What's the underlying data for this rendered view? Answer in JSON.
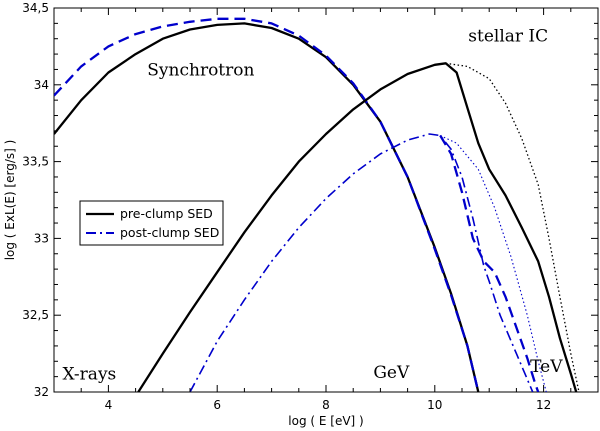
{
  "chart_data": {
    "type": "line",
    "title": "",
    "xlabel": "log ( E [eV] )",
    "ylabel": "log ( ExL(E) [erg/s] )",
    "xlim": [
      3,
      13
    ],
    "ylim": [
      32,
      34.5
    ],
    "grid": false,
    "x_ticks": [
      4,
      6,
      8,
      10,
      12
    ],
    "y_ticks": [
      {
        "value": 32,
        "label": "32"
      },
      {
        "value": 32.5,
        "label": "32,5"
      },
      {
        "value": 33,
        "label": "33"
      },
      {
        "value": 33.5,
        "label": "33,5"
      },
      {
        "value": 34,
        "label": "34"
      },
      {
        "value": 34.5,
        "label": "34,5"
      }
    ],
    "legend": {
      "placement": "center-left",
      "entries": [
        {
          "label": "pre-clump SED",
          "color": "#000000",
          "dash": "solid"
        },
        {
          "label": "post-clump SED",
          "color": "#0000cc",
          "dash": "dashdot"
        }
      ]
    },
    "annotations": [
      {
        "text": "Synchrotron",
        "x": 5.7,
        "y": 34.1
      },
      {
        "text": "stellar IC",
        "x": 11.35,
        "y": 34.32
      },
      {
        "text": "X-rays",
        "x": 3.65,
        "y": 32.12
      },
      {
        "text": "GeV",
        "x": 9.2,
        "y": 32.13
      },
      {
        "text": "TeV",
        "x": 12.05,
        "y": 32.17
      }
    ],
    "series": [
      {
        "name": "pre-clump synchrotron",
        "color": "#000000",
        "style": "solid",
        "width": 2.3,
        "points": [
          [
            3,
            33.68
          ],
          [
            3.5,
            33.9
          ],
          [
            4,
            34.08
          ],
          [
            4.5,
            34.2
          ],
          [
            5,
            34.3
          ],
          [
            5.5,
            34.36
          ],
          [
            6,
            34.39
          ],
          [
            6.5,
            34.4
          ],
          [
            7,
            34.37
          ],
          [
            7.5,
            34.3
          ],
          [
            8,
            34.18
          ],
          [
            8.5,
            34.0
          ],
          [
            9,
            33.76
          ],
          [
            9.5,
            33.4
          ],
          [
            10,
            32.94
          ],
          [
            10.3,
            32.64
          ],
          [
            10.6,
            32.3
          ],
          [
            10.8,
            32.0
          ]
        ]
      },
      {
        "name": "post-clump synchrotron",
        "color": "#0000cc",
        "style": "dashed",
        "width": 2.3,
        "points": [
          [
            3,
            33.93
          ],
          [
            3.5,
            34.12
          ],
          [
            4,
            34.25
          ],
          [
            4.5,
            34.33
          ],
          [
            5,
            34.38
          ],
          [
            5.5,
            34.41
          ],
          [
            6,
            34.43
          ],
          [
            6.5,
            34.43
          ],
          [
            7,
            34.4
          ],
          [
            7.5,
            34.32
          ],
          [
            8,
            34.19
          ],
          [
            8.5,
            34.01
          ],
          [
            9,
            33.76
          ],
          [
            9.5,
            33.4
          ],
          [
            10,
            32.93
          ],
          [
            10.3,
            32.63
          ],
          [
            10.6,
            32.3
          ],
          [
            10.8,
            32.0
          ]
        ]
      },
      {
        "name": "pre-clump stellar IC",
        "color": "#000000",
        "style": "solid",
        "width": 2.3,
        "points": [
          [
            4.55,
            32.0
          ],
          [
            5,
            32.25
          ],
          [
            5.5,
            32.52
          ],
          [
            6,
            32.78
          ],
          [
            6.5,
            33.04
          ],
          [
            7,
            33.28
          ],
          [
            7.5,
            33.5
          ],
          [
            8,
            33.68
          ],
          [
            8.5,
            33.84
          ],
          [
            9,
            33.97
          ],
          [
            9.5,
            34.07
          ],
          [
            10,
            34.13
          ],
          [
            10.2,
            34.14
          ],
          [
            10.4,
            34.08
          ],
          [
            10.6,
            33.85
          ],
          [
            10.8,
            33.62
          ],
          [
            11,
            33.45
          ],
          [
            11.3,
            33.28
          ],
          [
            11.6,
            33.07
          ],
          [
            11.9,
            32.85
          ],
          [
            12.1,
            32.62
          ],
          [
            12.3,
            32.35
          ],
          [
            12.5,
            32.12
          ],
          [
            12.6,
            32.0
          ]
        ]
      },
      {
        "name": "pre-clump stellar IC (unabsorbed)",
        "color": "#000000",
        "style": "dotted",
        "width": 1.3,
        "points": [
          [
            10.2,
            34.14
          ],
          [
            10.6,
            34.12
          ],
          [
            11,
            34.04
          ],
          [
            11.3,
            33.88
          ],
          [
            11.6,
            33.65
          ],
          [
            11.9,
            33.35
          ],
          [
            12.1,
            33.0
          ],
          [
            12.3,
            32.62
          ],
          [
            12.5,
            32.25
          ],
          [
            12.65,
            32.0
          ]
        ]
      },
      {
        "name": "post-clump stellar IC",
        "color": "#0000cc",
        "style": "dashdot",
        "width": 1.6,
        "points": [
          [
            5.5,
            32.0
          ],
          [
            6,
            32.33
          ],
          [
            6.5,
            32.6
          ],
          [
            7,
            32.85
          ],
          [
            7.5,
            33.07
          ],
          [
            8,
            33.26
          ],
          [
            8.5,
            33.42
          ],
          [
            9,
            33.55
          ],
          [
            9.5,
            33.64
          ],
          [
            9.9,
            33.68
          ],
          [
            10.1,
            33.67
          ],
          [
            10.3,
            33.58
          ],
          [
            10.5,
            33.4
          ],
          [
            10.7,
            33.13
          ],
          [
            10.9,
            32.82
          ],
          [
            11,
            32.72
          ],
          [
            11.2,
            32.5
          ],
          [
            11.5,
            32.25
          ],
          [
            11.8,
            32.0
          ]
        ]
      },
      {
        "name": "post-clump stellar IC (absorbed)",
        "color": "#0000cc",
        "style": "dashed",
        "width": 2.3,
        "points": [
          [
            10.1,
            33.67
          ],
          [
            10.3,
            33.55
          ],
          [
            10.5,
            33.3
          ],
          [
            10.7,
            33.0
          ],
          [
            10.9,
            32.85
          ],
          [
            11.1,
            32.78
          ],
          [
            11.3,
            32.62
          ],
          [
            11.5,
            32.42
          ],
          [
            11.7,
            32.22
          ],
          [
            11.85,
            32.05
          ],
          [
            11.9,
            32.0
          ]
        ]
      },
      {
        "name": "post-clump stellar IC (unabsorbed)",
        "color": "#0000cc",
        "style": "dotted",
        "width": 1.1,
        "points": [
          [
            10.1,
            33.67
          ],
          [
            10.4,
            33.62
          ],
          [
            10.8,
            33.45
          ],
          [
            11.1,
            33.2
          ],
          [
            11.4,
            32.88
          ],
          [
            11.7,
            32.5
          ],
          [
            11.9,
            32.2
          ],
          [
            12.05,
            32.0
          ]
        ]
      }
    ]
  }
}
